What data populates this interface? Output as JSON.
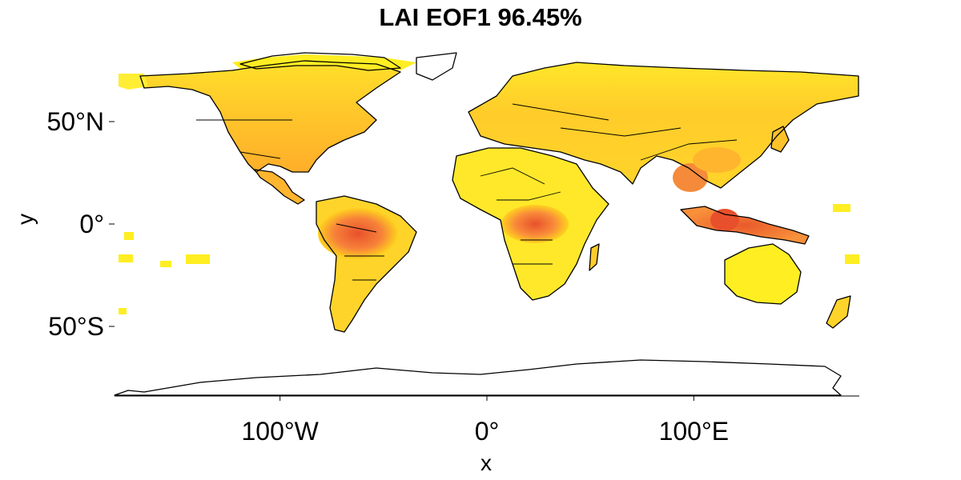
{
  "title": "LAI EOF1 96.45%",
  "x_axis": {
    "label": "x",
    "ticks": [
      {
        "label": "100°W",
        "lon": -100
      },
      {
        "label": "0°",
        "lon": 0
      },
      {
        "label": "100°E",
        "lon": 100
      }
    ]
  },
  "y_axis": {
    "label": "y",
    "ticks": [
      {
        "label": "50°N",
        "lat": 50
      },
      {
        "label": "0°",
        "lat": 0
      },
      {
        "label": "50°S",
        "lat": -50
      }
    ]
  },
  "extent": {
    "lon_min": -180,
    "lon_max": 180,
    "lat_min": -90,
    "lat_max": 83
  },
  "colors": {
    "low": "#ffff00",
    "mid": "#ffd21e",
    "high": "#ff9a1e",
    "peak": "#e8502c",
    "coastline": "#000000",
    "background": "#ffffff"
  }
}
